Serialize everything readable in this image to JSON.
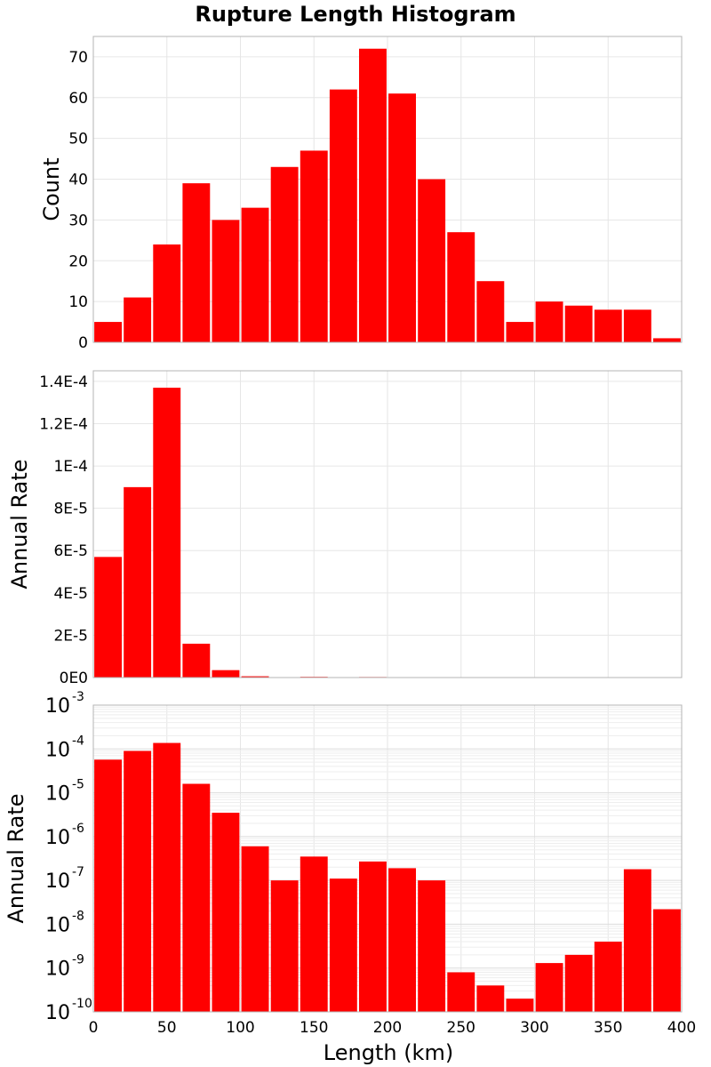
{
  "chart_data": {
    "title": "Rupture Length Histogram",
    "xlabel": "Length (km)",
    "x_ticks": [
      "0",
      "50",
      "100",
      "150",
      "200",
      "250",
      "300",
      "350",
      "400"
    ],
    "bin_width": 20,
    "bin_starts": [
      0,
      20,
      40,
      60,
      80,
      100,
      120,
      140,
      160,
      180,
      200,
      220,
      240,
      260,
      280,
      300,
      320,
      340,
      360,
      380
    ],
    "xlim": [
      0,
      400
    ],
    "bar_color": "#ff0000",
    "grid": true,
    "panels": [
      {
        "type": "bar",
        "ylabel": "Count",
        "ylim": [
          0,
          75
        ],
        "y_scale": "linear",
        "y_ticks": [
          0,
          10,
          20,
          30,
          40,
          50,
          60,
          70
        ],
        "y_tick_labels": [
          "0",
          "10",
          "20",
          "30",
          "40",
          "50",
          "60",
          "70"
        ],
        "values": [
          5,
          11,
          24,
          39,
          30,
          33,
          43,
          47,
          62,
          72,
          61,
          40,
          27,
          15,
          5,
          10,
          9,
          8,
          8,
          1
        ]
      },
      {
        "type": "bar",
        "ylabel": "Annual Rate",
        "ylim": [
          0,
          0.000145
        ],
        "y_scale": "linear",
        "y_ticks": [
          0,
          2e-05,
          4e-05,
          6e-05,
          8e-05,
          0.0001,
          0.00012,
          0.00014
        ],
        "y_tick_labels": [
          "0E0",
          "2E-5",
          "4E-5",
          "6E-5",
          "8E-5",
          "1E-4",
          "1.2E-4",
          "1.4E-4"
        ],
        "values": [
          5.7e-05,
          9e-05,
          0.000137,
          1.6e-05,
          3.5e-06,
          6e-07,
          1e-07,
          3.5e-07,
          1.1e-07,
          2.7e-07,
          1.9e-07,
          1e-07,
          8e-10,
          4e-10,
          2e-10,
          1.3e-09,
          2e-09,
          4e-09,
          1.8e-07,
          2.2e-08
        ]
      },
      {
        "type": "bar",
        "ylabel": "Annual Rate",
        "ylim": [
          1e-10,
          0.001
        ],
        "y_scale": "log",
        "y_tick_exponents": [
          "-10",
          "-9",
          "-8",
          "-7",
          "-6",
          "-5",
          "-4",
          "-3"
        ],
        "y_tick_base": "10",
        "values": [
          5.7e-05,
          9e-05,
          0.000137,
          1.6e-05,
          3.5e-06,
          6e-07,
          1e-07,
          3.5e-07,
          1.1e-07,
          2.7e-07,
          1.9e-07,
          1e-07,
          8e-10,
          4e-10,
          2e-10,
          1.3e-09,
          2e-09,
          4e-09,
          1.8e-07,
          2.2e-08
        ]
      }
    ]
  }
}
